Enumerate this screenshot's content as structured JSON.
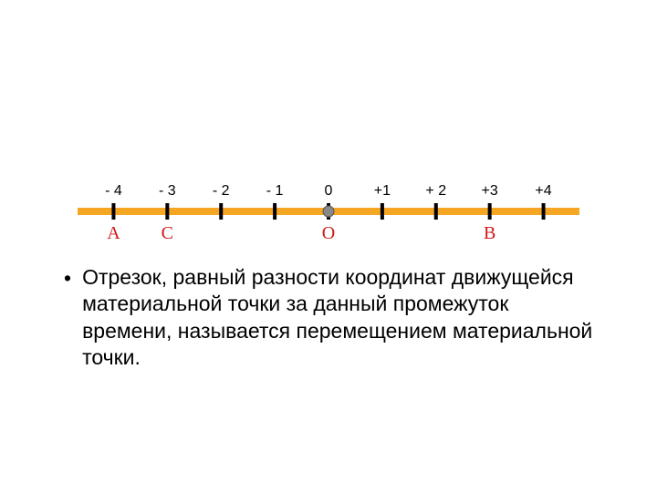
{
  "number_line": {
    "line_color": "#f5a623",
    "line_stroke_width": 8,
    "tick_color": "#000000",
    "tick_stroke_width": 4,
    "tick_height": 18,
    "origin_dot_color": "#888888",
    "origin_dot_radius": 6,
    "label_color": "#000000",
    "label_fontsize": 16,
    "point_label_color": "#d01818",
    "point_label_fontsize": 20,
    "xmin": -4.5,
    "xmax": 4.5,
    "ticks": [
      -4,
      -3,
      -2,
      -1,
      0,
      1,
      2,
      3,
      4
    ],
    "tick_labels": [
      "- 4",
      "- 3",
      "- 2",
      "- 1",
      "0",
      "+1",
      "+ 2",
      "+3",
      "+4"
    ],
    "labeled_points": [
      {
        "x": -4,
        "label": "A"
      },
      {
        "x": -3,
        "label": "C"
      },
      {
        "x": 0,
        "label": "O"
      },
      {
        "x": 3,
        "label": "B"
      }
    ]
  },
  "body": {
    "bullet_char": "•",
    "text": "Отрезок, равный разности координат движущейся материальной точки за данный промежуток времени, называется перемещением материальной точки."
  }
}
